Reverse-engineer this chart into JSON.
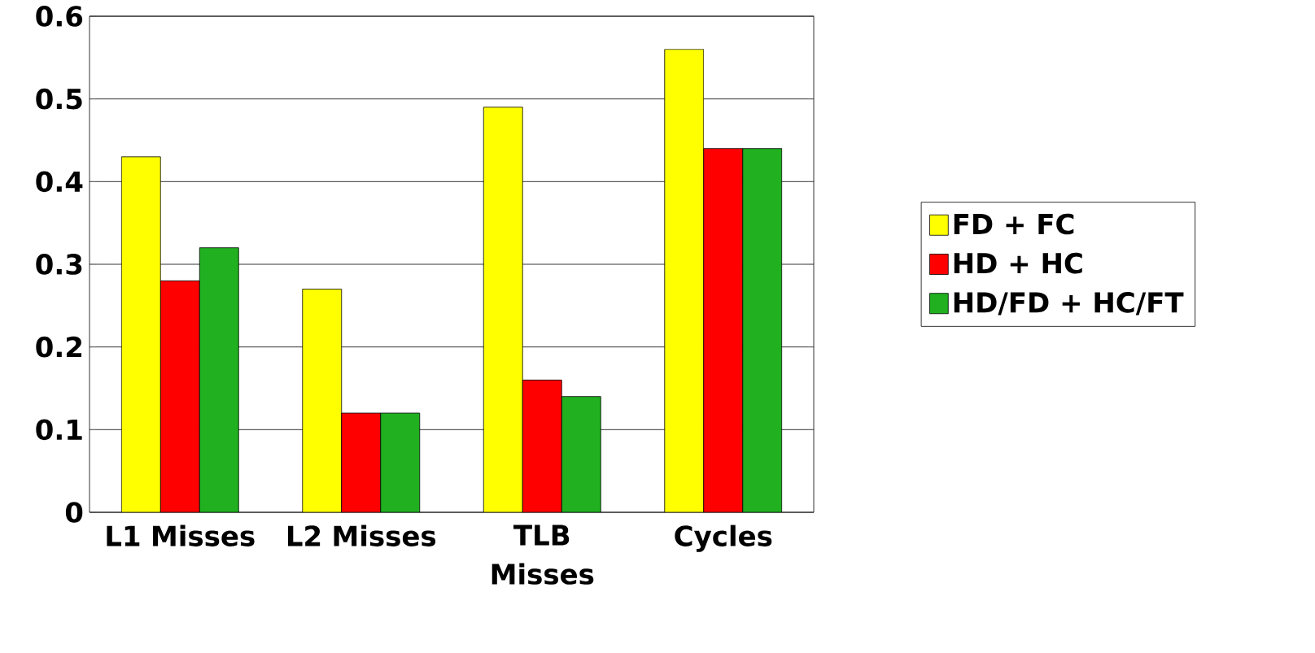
{
  "chart_data": {
    "type": "bar",
    "categories": [
      "L1 Misses",
      "L2 Misses",
      "TLB Misses",
      "Cycles"
    ],
    "series": [
      {
        "name": "FD + FC",
        "color": "#ffff00",
        "values": [
          0.43,
          0.27,
          0.49,
          0.56
        ]
      },
      {
        "name": "HD + HC",
        "color": "#ff0000",
        "values": [
          0.28,
          0.12,
          0.16,
          0.44
        ]
      },
      {
        "name": "HD/FD + HC/FT",
        "color": "#20b020",
        "values": [
          0.32,
          0.12,
          0.14,
          0.44
        ]
      }
    ],
    "ylim": [
      0,
      0.6
    ],
    "yticks": [
      0,
      0.1,
      0.2,
      0.3,
      0.4,
      0.5,
      0.6
    ],
    "grid": "y",
    "legend": "right"
  }
}
